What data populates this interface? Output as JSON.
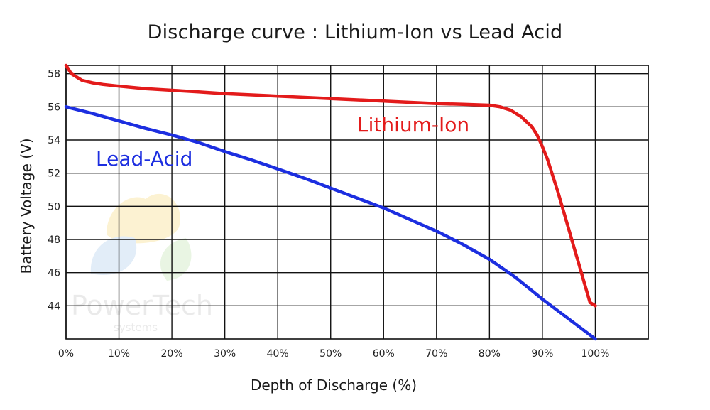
{
  "chart_data": {
    "type": "line",
    "title": "Discharge curve : Lithium-Ion vs Lead Acid",
    "xlabel": "Depth of Discharge (%)",
    "ylabel": "Battery Voltage (V)",
    "xlim": [
      0,
      110
    ],
    "ylim": [
      42,
      58.5
    ],
    "x_ticks": [
      "0%",
      "10%",
      "20%",
      "30%",
      "40%",
      "50%",
      "60%",
      "70%",
      "80%",
      "90%",
      "100%"
    ],
    "y_ticks": [
      44,
      46,
      48,
      50,
      52,
      54,
      56,
      58
    ],
    "grid": true,
    "series": [
      {
        "name": "Lithium-Ion",
        "color": "#e31b1b",
        "x": [
          0,
          1,
          2,
          3,
          5,
          7,
          10,
          15,
          20,
          25,
          30,
          40,
          50,
          60,
          70,
          75,
          80,
          82,
          84,
          86,
          88,
          89,
          90,
          91,
          92,
          93,
          94,
          95,
          96,
          97,
          98,
          99,
          100
        ],
        "y": [
          58.5,
          58.0,
          57.8,
          57.6,
          57.45,
          57.35,
          57.25,
          57.1,
          57.0,
          56.9,
          56.8,
          56.65,
          56.5,
          56.35,
          56.2,
          56.15,
          56.1,
          56.0,
          55.8,
          55.4,
          54.8,
          54.3,
          53.6,
          52.8,
          51.8,
          50.8,
          49.7,
          48.6,
          47.5,
          46.4,
          45.3,
          44.2,
          44.0
        ]
      },
      {
        "name": "Lead-Acid",
        "color": "#1c2ee0",
        "x": [
          0,
          5,
          10,
          15,
          20,
          25,
          30,
          35,
          40,
          45,
          50,
          55,
          60,
          65,
          70,
          75,
          80,
          85,
          90,
          95,
          100
        ],
        "y": [
          56.0,
          55.6,
          55.15,
          54.7,
          54.3,
          53.85,
          53.3,
          52.8,
          52.25,
          51.7,
          51.1,
          50.5,
          49.9,
          49.2,
          48.5,
          47.7,
          46.8,
          45.7,
          44.4,
          43.2,
          42.0
        ]
      }
    ],
    "annotations": [
      {
        "text": "Lithium-Ion",
        "series": "Lithium-Ion"
      },
      {
        "text": "Lead-Acid",
        "series": "Lead-Acid"
      }
    ]
  },
  "watermark": {
    "brand": "PowerTech",
    "subtitle": "systems"
  }
}
